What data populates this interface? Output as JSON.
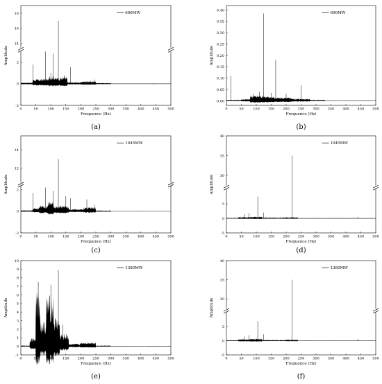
{
  "chart_data": [
    {
      "panel": "a",
      "caption": "(a)",
      "type": "line",
      "xlabel": "Frequence (Hz)",
      "ylabel": "Amplitude",
      "xlim": [
        0,
        500
      ],
      "xticks": [
        0,
        50,
        100,
        150,
        200,
        250,
        300,
        350,
        400,
        450,
        500
      ],
      "legend": "696MW",
      "legend_position": "top-right",
      "broken_y": true,
      "upper": {
        "ylim": [
          13.5,
          19
        ],
        "ticks": [
          14,
          16,
          18
        ]
      },
      "lower": {
        "ylim": [
          -2,
          3
        ],
        "ticks": [
          -2,
          0,
          2
        ]
      },
      "envelope": [
        {
          "from": 0,
          "to": 40,
          "amp": 0.12
        },
        {
          "from": 40,
          "to": 75,
          "amp": 0.45
        },
        {
          "from": 75,
          "to": 95,
          "amp": 0.5
        },
        {
          "from": 95,
          "to": 115,
          "amp": 0.75
        },
        {
          "from": 115,
          "to": 130,
          "amp": 0.6
        },
        {
          "from": 130,
          "to": 155,
          "amp": 0.65
        },
        {
          "from": 155,
          "to": 200,
          "amp": 0.15
        },
        {
          "from": 200,
          "to": 250,
          "amp": 0.25
        },
        {
          "from": 250,
          "to": 300,
          "amp": 0.08
        },
        {
          "from": 300,
          "to": 500,
          "amp": 0.02
        }
      ],
      "peaks": [
        {
          "x": 40,
          "y": 1.8
        },
        {
          "x": 82,
          "y": 3.0
        },
        {
          "x": 100,
          "y": 1.0
        },
        {
          "x": 108,
          "y": 2.8
        },
        {
          "x": 125,
          "y": 17.0
        },
        {
          "x": 145,
          "y": 0.8
        },
        {
          "x": 165,
          "y": 1.55
        },
        {
          "x": 245,
          "y": 0.4
        }
      ]
    },
    {
      "panel": "b",
      "caption": "(b)",
      "type": "line",
      "xlabel": "Frequence (Hz)",
      "ylabel": "Amplitude",
      "xlim": [
        0,
        500
      ],
      "xticks": [
        0,
        50,
        100,
        150,
        200,
        250,
        300,
        350,
        400,
        450,
        500
      ],
      "legend": "696MW",
      "legend_position": "top-right",
      "broken_y": false,
      "ylim": [
        -0.02,
        0.42
      ],
      "yticks": [
        0.0,
        0.05,
        0.1,
        0.15,
        0.2,
        0.25,
        0.3,
        0.35,
        0.4
      ],
      "ytick_labels": [
        "0.00",
        "0.05",
        "0.10",
        "0.15",
        "0.20",
        "0.25",
        "0.30",
        "0.35",
        "0.40"
      ],
      "envelope": [
        {
          "from": 0,
          "to": 50,
          "amp": 0.004
        },
        {
          "from": 50,
          "to": 80,
          "amp": 0.008
        },
        {
          "from": 80,
          "to": 130,
          "amp": 0.025
        },
        {
          "from": 130,
          "to": 160,
          "amp": 0.02
        },
        {
          "from": 160,
          "to": 220,
          "amp": 0.015
        },
        {
          "from": 220,
          "to": 280,
          "amp": 0.01
        },
        {
          "from": 280,
          "to": 330,
          "amp": 0.004
        },
        {
          "from": 330,
          "to": 500,
          "amp": 0.001
        }
      ],
      "peaks": [
        {
          "x": 15,
          "y": 0.11
        },
        {
          "x": 90,
          "y": 0.03
        },
        {
          "x": 110,
          "y": 0.04
        },
        {
          "x": 125,
          "y": 0.385
        },
        {
          "x": 150,
          "y": 0.035
        },
        {
          "x": 165,
          "y": 0.18
        },
        {
          "x": 200,
          "y": 0.03
        },
        {
          "x": 250,
          "y": 0.068
        }
      ]
    },
    {
      "panel": "c",
      "caption": "(c)",
      "type": "line",
      "xlabel": "Frequence (Hz)",
      "ylabel": "Amplitude",
      "xlim": [
        0,
        500
      ],
      "xticks": [
        0,
        50,
        100,
        150,
        200,
        250,
        300,
        350,
        400,
        450,
        500
      ],
      "legend": "1045MW",
      "legend_position": "top-right",
      "broken_y": true,
      "upper": {
        "ylim": [
          10.5,
          15.5
        ],
        "ticks": [
          12,
          14
        ]
      },
      "lower": {
        "ylim": [
          -2,
          2.3
        ],
        "ticks": [
          -2,
          0,
          2
        ]
      },
      "envelope": [
        {
          "from": 0,
          "to": 40,
          "amp": 0.1
        },
        {
          "from": 40,
          "to": 60,
          "amp": 0.3
        },
        {
          "from": 60,
          "to": 90,
          "amp": 0.55
        },
        {
          "from": 90,
          "to": 110,
          "amp": 0.9
        },
        {
          "from": 110,
          "to": 130,
          "amp": 0.5
        },
        {
          "from": 130,
          "to": 160,
          "amp": 0.55
        },
        {
          "from": 160,
          "to": 210,
          "amp": 0.2
        },
        {
          "from": 210,
          "to": 250,
          "amp": 0.4
        },
        {
          "from": 250,
          "to": 300,
          "amp": 0.08
        },
        {
          "from": 300,
          "to": 500,
          "amp": 0.02
        }
      ],
      "peaks": [
        {
          "x": 40,
          "y": 1.7
        },
        {
          "x": 82,
          "y": 2.2
        },
        {
          "x": 108,
          "y": 1.9
        },
        {
          "x": 125,
          "y": 13.0
        },
        {
          "x": 150,
          "y": 1.4
        },
        {
          "x": 165,
          "y": 1.2
        },
        {
          "x": 220,
          "y": 1.1
        },
        {
          "x": 245,
          "y": 0.6
        }
      ]
    },
    {
      "panel": "d",
      "caption": "(d)",
      "type": "line",
      "xlabel": "Frequence (Hz)",
      "ylabel": "Amplitude",
      "xlim": [
        0,
        500
      ],
      "xticks": [
        0,
        50,
        100,
        150,
        200,
        250,
        300,
        350,
        400,
        450,
        500
      ],
      "legend": "1045MW",
      "legend_position": "top-right",
      "broken_y": true,
      "upper": {
        "ylim": [
          27.5,
          40
        ],
        "ticks": [
          30,
          35,
          40
        ]
      },
      "lower": {
        "ylim": [
          -5,
          10
        ],
        "ticks": [
          -5,
          0,
          5
        ]
      },
      "envelope": [
        {
          "from": 0,
          "to": 40,
          "amp": 0.2
        },
        {
          "from": 40,
          "to": 80,
          "amp": 0.5
        },
        {
          "from": 80,
          "to": 120,
          "amp": 0.6
        },
        {
          "from": 120,
          "to": 200,
          "amp": 0.3
        },
        {
          "from": 200,
          "to": 240,
          "amp": 0.4
        },
        {
          "from": 240,
          "to": 500,
          "amp": 0.08
        }
      ],
      "peaks": [
        {
          "x": 60,
          "y": 1.5
        },
        {
          "x": 75,
          "y": 1.8
        },
        {
          "x": 105,
          "y": 7.5
        },
        {
          "x": 125,
          "y": 2.0
        },
        {
          "x": 220,
          "y": 35.0
        },
        {
          "x": 440,
          "y": 0.5
        }
      ]
    },
    {
      "panel": "e",
      "caption": "(e)",
      "type": "line",
      "xlabel": "Frequence (Hz)",
      "ylabel": "Amplitude",
      "xlim": [
        0,
        500
      ],
      "xticks": [
        0,
        50,
        100,
        150,
        200,
        250,
        300,
        350,
        400,
        450,
        500
      ],
      "legend": "1380MW",
      "legend_position": "top-right",
      "broken_y": false,
      "ylim": [
        -1,
        10
      ],
      "yticks": [
        -1,
        0,
        1,
        2,
        3,
        4,
        5,
        6,
        7,
        8,
        9,
        10
      ],
      "ytick_labels": [
        "-1",
        "0",
        "1",
        "2",
        "3",
        "4",
        "5",
        "6",
        "7",
        "8",
        "9",
        "10"
      ],
      "envelope": [
        {
          "from": 0,
          "to": 30,
          "amp": 0.1
        },
        {
          "from": 30,
          "to": 50,
          "amp": 1.0
        },
        {
          "from": 50,
          "to": 65,
          "amp": 6.5
        },
        {
          "from": 65,
          "to": 85,
          "amp": 3.0
        },
        {
          "from": 85,
          "to": 110,
          "amp": 6.0
        },
        {
          "from": 110,
          "to": 130,
          "amp": 3.5
        },
        {
          "from": 130,
          "to": 160,
          "amp": 1.5
        },
        {
          "from": 160,
          "to": 200,
          "amp": 0.3
        },
        {
          "from": 200,
          "to": 250,
          "amp": 0.5
        },
        {
          "from": 250,
          "to": 300,
          "amp": 0.1
        },
        {
          "from": 300,
          "to": 500,
          "amp": 0.03
        }
      ],
      "peaks": [
        {
          "x": 58,
          "y": 7.5
        },
        {
          "x": 100,
          "y": 7.2
        },
        {
          "x": 125,
          "y": 8.9
        },
        {
          "x": 140,
          "y": 2.5
        }
      ]
    },
    {
      "panel": "f",
      "caption": "(f)",
      "type": "line",
      "xlabel": "Frequence (Hz)",
      "ylabel": "Amplitude",
      "xlim": [
        0,
        500
      ],
      "xticks": [
        0,
        50,
        100,
        150,
        200,
        250,
        300,
        350,
        400,
        450,
        500
      ],
      "legend": "1380MW",
      "legend_position": "top-right",
      "broken_y": true,
      "upper": {
        "ylim": [
          27.5,
          40
        ],
        "ticks": [
          30,
          35,
          40
        ]
      },
      "lower": {
        "ylim": [
          -5,
          10
        ],
        "ticks": [
          -5,
          0,
          5
        ]
      },
      "envelope": [
        {
          "from": 0,
          "to": 40,
          "amp": 0.2
        },
        {
          "from": 40,
          "to": 80,
          "amp": 0.6
        },
        {
          "from": 80,
          "to": 120,
          "amp": 0.8
        },
        {
          "from": 120,
          "to": 200,
          "amp": 0.3
        },
        {
          "from": 200,
          "to": 240,
          "amp": 0.4
        },
        {
          "from": 240,
          "to": 500,
          "amp": 0.08
        }
      ],
      "peaks": [
        {
          "x": 60,
          "y": 1.5
        },
        {
          "x": 75,
          "y": 2.0
        },
        {
          "x": 105,
          "y": 7.0
        },
        {
          "x": 125,
          "y": 2.3
        },
        {
          "x": 220,
          "y": 35.0
        },
        {
          "x": 440,
          "y": 0.7
        }
      ]
    }
  ]
}
